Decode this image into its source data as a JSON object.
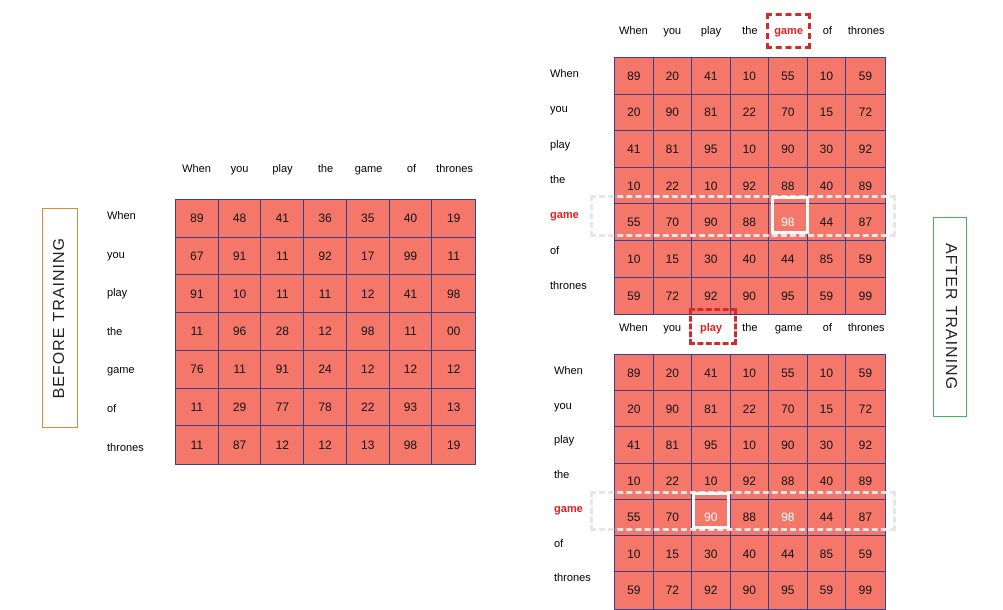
{
  "before": {
    "title": "BEFORE TRAINING",
    "cols": [
      "When",
      "you",
      "play",
      "the",
      "game",
      "of",
      "thrones"
    ],
    "rows": [
      "When",
      "you",
      "play",
      "the",
      "game",
      "of",
      "thrones"
    ],
    "values": [
      [
        "89",
        "48",
        "41",
        "36",
        "35",
        "40",
        "19"
      ],
      [
        "67",
        "91",
        "11",
        "92",
        "17",
        "99",
        "11"
      ],
      [
        "91",
        "10",
        "11",
        "11",
        "12",
        "41",
        "98"
      ],
      [
        "11",
        "96",
        "28",
        "12",
        "98",
        "11",
        "00"
      ],
      [
        "76",
        "11",
        "91",
        "24",
        "12",
        "12",
        "12"
      ],
      [
        "11",
        "29",
        "77",
        "78",
        "22",
        "93",
        "13"
      ],
      [
        "11",
        "87",
        "12",
        "12",
        "13",
        "98",
        "19"
      ]
    ]
  },
  "after": {
    "title": "AFTER TRAINING",
    "top": {
      "cols": [
        "When",
        "you",
        "play",
        "the",
        "game",
        "of",
        "thrones"
      ],
      "rows": [
        "When",
        "you",
        "play",
        "the",
        "game",
        "of",
        "thrones"
      ],
      "highlight_col": "game",
      "highlight_row": "game",
      "values": [
        [
          "89",
          "20",
          "41",
          "10",
          "55",
          "10",
          "59"
        ],
        [
          "20",
          "90",
          "81",
          "22",
          "70",
          "15",
          "72"
        ],
        [
          "41",
          "81",
          "95",
          "10",
          "90",
          "30",
          "92"
        ],
        [
          "10",
          "22",
          "10",
          "92",
          "88",
          "40",
          "89"
        ],
        [
          "55",
          "70",
          "90",
          "88",
          "98",
          "44",
          "87"
        ],
        [
          "10",
          "15",
          "30",
          "40",
          "44",
          "85",
          "59"
        ],
        [
          "59",
          "72",
          "92",
          "90",
          "95",
          "59",
          "99"
        ]
      ]
    },
    "bottom": {
      "cols": [
        "When",
        "you",
        "play",
        "the",
        "game",
        "of",
        "thrones"
      ],
      "rows": [
        "When",
        "you",
        "play",
        "the",
        "game",
        "of",
        "thrones"
      ],
      "highlight_col": "play",
      "highlight_row": "game",
      "values": [
        [
          "89",
          "20",
          "41",
          "10",
          "55",
          "10",
          "59"
        ],
        [
          "20",
          "90",
          "81",
          "22",
          "70",
          "15",
          "72"
        ],
        [
          "41",
          "81",
          "95",
          "10",
          "90",
          "30",
          "92"
        ],
        [
          "10",
          "22",
          "10",
          "92",
          "88",
          "40",
          "89"
        ],
        [
          "55",
          "70",
          "90",
          "88",
          "98",
          "44",
          "87"
        ],
        [
          "10",
          "15",
          "30",
          "40",
          "44",
          "85",
          "59"
        ],
        [
          "59",
          "72",
          "92",
          "90",
          "95",
          "59",
          "99"
        ]
      ]
    }
  }
}
